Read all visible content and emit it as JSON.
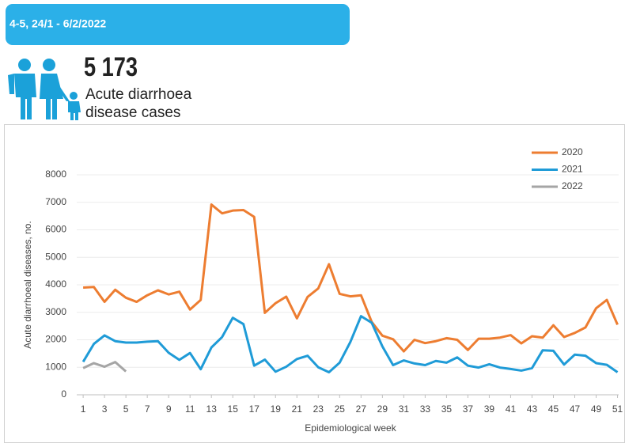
{
  "header": {
    "banner": "4-5, 24/1 - 6/2/2022"
  },
  "stat": {
    "number": "5 173",
    "label_lines": [
      "Acute diarrhoea",
      "disease cases"
    ]
  },
  "chart_data": {
    "type": "line",
    "xlabel": "Epidemiological week",
    "ylabel": "Acute diarrhoeal diseases, no.",
    "x": [
      1,
      2,
      3,
      4,
      5,
      6,
      7,
      8,
      9,
      10,
      11,
      12,
      13,
      14,
      15,
      16,
      17,
      18,
      19,
      20,
      21,
      22,
      23,
      24,
      25,
      26,
      27,
      28,
      29,
      30,
      31,
      32,
      33,
      34,
      35,
      36,
      37,
      38,
      39,
      40,
      41,
      42,
      43,
      44,
      45,
      46,
      47,
      48,
      49,
      50,
      51
    ],
    "xlim": [
      0.4,
      51.7
    ],
    "xticks": [
      1,
      3,
      5,
      7,
      9,
      11,
      13,
      15,
      17,
      19,
      21,
      23,
      25,
      27,
      29,
      31,
      33,
      35,
      37,
      39,
      41,
      43,
      45,
      47,
      49,
      51
    ],
    "ylim": [
      0,
      8000
    ],
    "yticks": [
      0,
      1000,
      2000,
      3000,
      4000,
      5000,
      6000,
      7000,
      8000
    ],
    "grid": true,
    "legend": "top-right",
    "series": [
      {
        "name": "2020",
        "color": "#ed7d31",
        "values": [
          3900,
          3920,
          3380,
          3820,
          3530,
          3380,
          3620,
          3800,
          3650,
          3750,
          3100,
          3450,
          6920,
          6600,
          6700,
          6720,
          6470,
          2980,
          3330,
          3570,
          2780,
          3560,
          3870,
          4750,
          3670,
          3580,
          3620,
          2650,
          2150,
          2020,
          1580,
          2000,
          1880,
          1950,
          2060,
          2000,
          1630,
          2040,
          2040,
          2080,
          2170,
          1870,
          2130,
          2080,
          2530,
          2100,
          2250,
          2450,
          3150,
          3450,
          2550
        ]
      },
      {
        "name": "2021",
        "color": "#1f9bd7",
        "values": [
          1200,
          1850,
          2160,
          1950,
          1900,
          1900,
          1930,
          1950,
          1530,
          1270,
          1520,
          930,
          1720,
          2100,
          2800,
          2570,
          1060,
          1280,
          840,
          1020,
          1300,
          1420,
          1000,
          820,
          1170,
          1920,
          2860,
          2620,
          1760,
          1080,
          1250,
          1140,
          1080,
          1230,
          1170,
          1360,
          1060,
          990,
          1110,
          990,
          940,
          880,
          970,
          1620,
          1600,
          1100,
          1460,
          1420,
          1150,
          1090,
          820
        ]
      },
      {
        "name": "2022",
        "color": "#a5a5a5",
        "values": [
          970,
          1150,
          1020,
          1190,
          850,
          null,
          null,
          null,
          null,
          null,
          null,
          null,
          null,
          null,
          null,
          null,
          null,
          null,
          null,
          null,
          null,
          null,
          null,
          null,
          null,
          null,
          null,
          null,
          null,
          null,
          null,
          null,
          null,
          null,
          null,
          null,
          null,
          null,
          null,
          null,
          null,
          null,
          null,
          null,
          null,
          null,
          null,
          null,
          null,
          null,
          null
        ]
      }
    ]
  }
}
